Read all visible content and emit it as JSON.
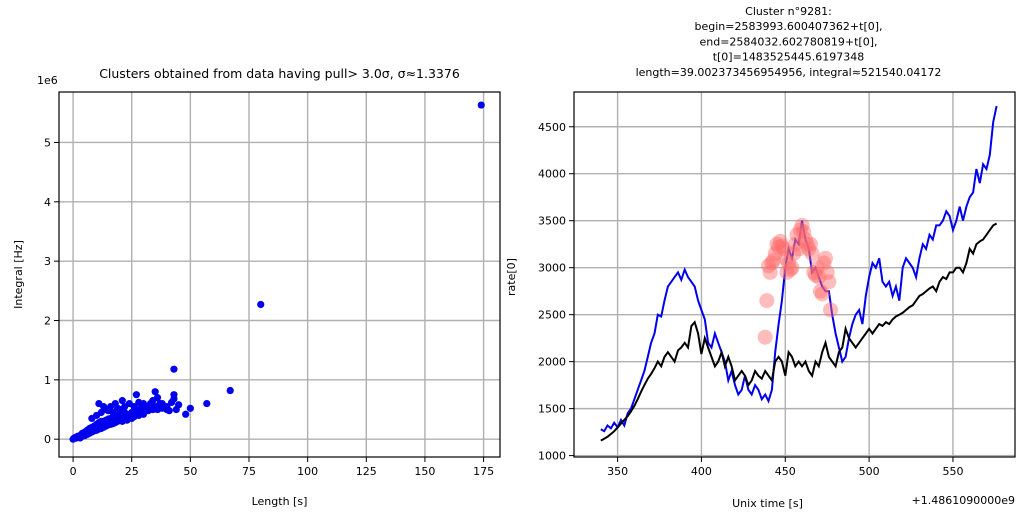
{
  "chart_data": [
    {
      "type": "scatter",
      "title": "Clusters obtained from data having pull> 3.0σ, σ≈1.3376",
      "xlabel": "Length [s]",
      "ylabel": "Integral [Hz]",
      "y_offset_label": "1e6",
      "xlim": [
        -6,
        182
      ],
      "ylim": [
        -0.3,
        5.85
      ],
      "xticks": [
        0,
        25,
        50,
        75,
        100,
        125,
        150,
        175
      ],
      "xtick_labels": [
        "0",
        "25",
        "50",
        "75",
        "100",
        "125",
        "150",
        "175"
      ],
      "yticks": [
        0,
        1,
        2,
        3,
        4,
        5
      ],
      "ytick_labels": [
        "0",
        "1",
        "2",
        "3",
        "4",
        "5"
      ],
      "grid": true,
      "colors": {
        "points": "#0000ee"
      },
      "points": [
        [
          0,
          0
        ],
        [
          0.5,
          0.02
        ],
        [
          1,
          0.03
        ],
        [
          1.5,
          0.02
        ],
        [
          2,
          0.05
        ],
        [
          2.5,
          0.04
        ],
        [
          3,
          0.06
        ],
        [
          3,
          0.02
        ],
        [
          3.5,
          0.08
        ],
        [
          4,
          0.05
        ],
        [
          4,
          0.1
        ],
        [
          4.5,
          0.07
        ],
        [
          5,
          0.12
        ],
        [
          5,
          0.06
        ],
        [
          5.5,
          0.1
        ],
        [
          6,
          0.15
        ],
        [
          6,
          0.08
        ],
        [
          6.5,
          0.12
        ],
        [
          7,
          0.18
        ],
        [
          7,
          0.1
        ],
        [
          7.5,
          0.14
        ],
        [
          8,
          0.2
        ],
        [
          8,
          0.12
        ],
        [
          8.5,
          0.16
        ],
        [
          9,
          0.22
        ],
        [
          9,
          0.14
        ],
        [
          9.5,
          0.18
        ],
        [
          10,
          0.25
        ],
        [
          10,
          0.15
        ],
        [
          10.5,
          0.2
        ],
        [
          11,
          0.28
        ],
        [
          11,
          0.17
        ],
        [
          11.5,
          0.22
        ],
        [
          12,
          0.3
        ],
        [
          12,
          0.18
        ],
        [
          12.5,
          0.24
        ],
        [
          13,
          0.3
        ],
        [
          13,
          0.2
        ],
        [
          13.5,
          0.26
        ],
        [
          14,
          0.32
        ],
        [
          14,
          0.22
        ],
        [
          14.5,
          0.27
        ],
        [
          15,
          0.34
        ],
        [
          15,
          0.24
        ],
        [
          15.5,
          0.29
        ],
        [
          16,
          0.35
        ],
        [
          16,
          0.25
        ],
        [
          16.5,
          0.3
        ],
        [
          17,
          0.36
        ],
        [
          17,
          0.26
        ],
        [
          17.5,
          0.31
        ],
        [
          18,
          0.38
        ],
        [
          18,
          0.28
        ],
        [
          18.5,
          0.33
        ],
        [
          19,
          0.4
        ],
        [
          19,
          0.3
        ],
        [
          19.5,
          0.35
        ],
        [
          20,
          0.42
        ],
        [
          20,
          0.32
        ],
        [
          21,
          0.38
        ],
        [
          21,
          0.3
        ],
        [
          22,
          0.45
        ],
        [
          22,
          0.34
        ],
        [
          23,
          0.4
        ],
        [
          23,
          0.32
        ],
        [
          24,
          0.42
        ],
        [
          25,
          0.45
        ],
        [
          25,
          0.35
        ],
        [
          26,
          0.48
        ],
        [
          26,
          0.38
        ],
        [
          27,
          0.5
        ],
        [
          28,
          0.45
        ],
        [
          28,
          0.4
        ],
        [
          29,
          0.52
        ],
        [
          30,
          0.5
        ],
        [
          30,
          0.42
        ],
        [
          31,
          0.55
        ],
        [
          32,
          0.48
        ],
        [
          33,
          0.6
        ],
        [
          34,
          0.5
        ],
        [
          35,
          0.55
        ],
        [
          36,
          0.5
        ],
        [
          37,
          0.6
        ],
        [
          38,
          0.52
        ],
        [
          40,
          0.55
        ],
        [
          41,
          0.48
        ],
        [
          42,
          0.62
        ],
        [
          44,
          0.5
        ],
        [
          45,
          0.58
        ],
        [
          8,
          0.35
        ],
        [
          10,
          0.4
        ],
        [
          12,
          0.45
        ],
        [
          14,
          0.5
        ],
        [
          16,
          0.55
        ],
        [
          18,
          0.6
        ],
        [
          20,
          0.5
        ],
        [
          21,
          0.65
        ],
        [
          22,
          0.55
        ],
        [
          13,
          0.55
        ],
        [
          11,
          0.6
        ],
        [
          15,
          0.48
        ],
        [
          17,
          0.45
        ],
        [
          19,
          0.52
        ],
        [
          24,
          0.6
        ],
        [
          26,
          0.55
        ],
        [
          28,
          0.62
        ],
        [
          30,
          0.6
        ],
        [
          32,
          0.55
        ],
        [
          34,
          0.65
        ],
        [
          36,
          0.7
        ],
        [
          38,
          0.6
        ],
        [
          40,
          0.5
        ],
        [
          43,
          0.68
        ],
        [
          27,
          0.75
        ],
        [
          35,
          0.8
        ],
        [
          43,
          0.75
        ],
        [
          43,
          1.18
        ],
        [
          48,
          0.42
        ],
        [
          50,
          0.52
        ],
        [
          57,
          0.6
        ],
        [
          67,
          0.82
        ],
        [
          80,
          2.27
        ],
        [
          174,
          5.63
        ]
      ]
    },
    {
      "type": "line",
      "title_lines": [
        "Cluster n°9281:",
        "begin=2583993.600407362+t[0],",
        "end=2584032.602780819+t[0],",
        "t[0]=1483525445.6197348",
        "length=39.002373456954956, integral≈521540.04172"
      ],
      "xlabel": "Unix time [s]",
      "ylabel": "rate[0]",
      "x_offset_label": "+1.4861090000e9",
      "xlim": [
        324,
        587
      ],
      "ylim": [
        985,
        4870
      ],
      "xticks": [
        350,
        400,
        450,
        500,
        550
      ],
      "xtick_labels": [
        "350",
        "400",
        "450",
        "500",
        "550"
      ],
      "yticks": [
        1000,
        1500,
        2000,
        2500,
        3000,
        3500,
        4000,
        4500
      ],
      "ytick_labels": [
        "1000",
        "1500",
        "2000",
        "2500",
        "3000",
        "3500",
        "4000",
        "4500"
      ],
      "grid": true,
      "colors": {
        "blue": "#0000ee",
        "black": "#000000",
        "highlight": "#ff6b6b"
      },
      "series": [
        {
          "color": "#0000ee",
          "x": [
            340,
            342,
            344,
            346,
            348,
            350,
            352,
            354,
            356,
            358,
            360,
            362,
            364,
            366,
            368,
            370,
            372,
            374,
            376,
            378,
            380,
            382,
            384,
            386,
            388,
            390,
            392,
            394,
            396,
            398,
            400,
            402,
            404,
            406,
            408,
            410,
            412,
            414,
            416,
            418,
            420,
            422,
            424,
            426,
            428,
            430,
            432,
            434,
            436,
            438,
            440,
            442,
            444,
            446,
            448,
            450,
            452,
            454,
            456,
            458,
            460,
            462,
            464,
            466,
            468,
            470,
            472,
            474,
            476,
            478,
            480,
            482,
            484,
            486,
            488,
            490,
            492,
            494,
            496,
            498,
            500,
            502,
            504,
            506,
            508,
            510,
            512,
            514,
            516,
            518,
            520,
            522,
            524,
            526,
            528,
            530,
            532,
            534,
            536,
            538,
            540,
            542,
            544,
            546,
            548,
            550,
            552,
            554,
            556,
            558,
            560,
            562,
            564,
            566,
            568,
            570,
            572,
            574,
            576
          ],
          "y": [
            1280,
            1260,
            1320,
            1290,
            1350,
            1300,
            1380,
            1320,
            1450,
            1500,
            1600,
            1700,
            1800,
            1900,
            2050,
            2200,
            2300,
            2500,
            2480,
            2650,
            2800,
            2850,
            2900,
            2950,
            2870,
            2980,
            2900,
            2850,
            2800,
            2650,
            2550,
            2450,
            2200,
            2150,
            2300,
            2200,
            2100,
            2000,
            1800,
            1900,
            1750,
            1650,
            1700,
            1850,
            1700,
            1650,
            1750,
            1700,
            1600,
            1650,
            1580,
            1700,
            2100,
            2400,
            2650,
            3000,
            3200,
            3100,
            3300,
            3250,
            3500,
            3300,
            3200,
            2950,
            3000,
            2900,
            2800,
            2750,
            2750,
            2500,
            2300,
            2150,
            2000,
            2050,
            2250,
            2400,
            2500,
            2550,
            2400,
            2700,
            2900,
            3050,
            3000,
            3100,
            2850,
            2800,
            2850,
            2700,
            2800,
            2650,
            3000,
            3100,
            3050,
            3000,
            2900,
            3100,
            3250,
            3200,
            3350,
            3300,
            3450,
            3450,
            3500,
            3600,
            3550,
            3400,
            3500,
            3650,
            3500,
            3650,
            3750,
            3800,
            4050,
            3900,
            4100,
            4050,
            4200,
            4550,
            4720
          ]
        },
        {
          "color": "#000000",
          "x": [
            340,
            342,
            344,
            346,
            348,
            350,
            352,
            354,
            356,
            358,
            360,
            362,
            364,
            366,
            368,
            370,
            372,
            374,
            376,
            378,
            380,
            382,
            384,
            386,
            388,
            390,
            392,
            394,
            396,
            398,
            400,
            402,
            404,
            406,
            408,
            410,
            412,
            414,
            416,
            418,
            420,
            422,
            424,
            426,
            428,
            430,
            432,
            434,
            436,
            438,
            440,
            442,
            444,
            446,
            448,
            450,
            452,
            454,
            456,
            458,
            460,
            462,
            464,
            466,
            468,
            470,
            472,
            474,
            476,
            478,
            480,
            482,
            484,
            486,
            488,
            490,
            492,
            494,
            496,
            498,
            500,
            502,
            504,
            506,
            508,
            510,
            512,
            514,
            516,
            518,
            520,
            522,
            524,
            526,
            528,
            530,
            532,
            534,
            536,
            538,
            540,
            542,
            544,
            546,
            548,
            550,
            552,
            554,
            556,
            558,
            560,
            562,
            564,
            566,
            568,
            570,
            572,
            574,
            576
          ],
          "y": [
            1160,
            1180,
            1200,
            1230,
            1260,
            1300,
            1340,
            1380,
            1420,
            1470,
            1530,
            1600,
            1680,
            1750,
            1820,
            1870,
            1930,
            2000,
            1950,
            2050,
            2100,
            2050,
            2000,
            2120,
            2150,
            2200,
            2150,
            2380,
            2420,
            2300,
            2080,
            2250,
            2150,
            2050,
            1950,
            2000,
            2100,
            1950,
            2050,
            1950,
            1800,
            1850,
            1900,
            1850,
            1750,
            1800,
            1900,
            1850,
            1820,
            1900,
            1850,
            1800,
            2000,
            2050,
            2000,
            1850,
            2100,
            2050,
            1950,
            2000,
            1950,
            2000,
            1900,
            1850,
            2000,
            1950,
            2100,
            2200,
            2050,
            2000,
            1950,
            2100,
            2150,
            2350,
            2250,
            2200,
            2150,
            2200,
            2250,
            2300,
            2350,
            2300,
            2350,
            2400,
            2380,
            2420,
            2400,
            2450,
            2480,
            2500,
            2520,
            2550,
            2580,
            2600,
            2650,
            2700,
            2720,
            2750,
            2780,
            2800,
            2750,
            2850,
            2900,
            2880,
            2950,
            2950,
            3000,
            3000,
            2950,
            3050,
            3200,
            3150,
            3250,
            3280,
            3300,
            3350,
            3400,
            3450,
            3470
          ]
        },
        {
          "name": "",
          "type": "scatter",
          "color": "#ff6b6b",
          "x": [
            438,
            439,
            440,
            441,
            442,
            443,
            444,
            445,
            446,
            447,
            448,
            449,
            450,
            451,
            452,
            453,
            454,
            455,
            456,
            457,
            458,
            459,
            460,
            461,
            462,
            463,
            464,
            465,
            466,
            467,
            468,
            469,
            470,
            471,
            472,
            473,
            474,
            475,
            476,
            477
          ],
          "y": [
            2260,
            2650,
            3020,
            2950,
            3050,
            3080,
            3150,
            3250,
            3220,
            3280,
            3230,
            3200,
            3100,
            2950,
            3050,
            2980,
            3000,
            3150,
            3250,
            3350,
            3200,
            3400,
            3450,
            3380,
            3300,
            3250,
            3200,
            3250,
            3150,
            2950,
            2920,
            3000,
            2900,
            2750,
            2720,
            3050,
            3100,
            2950,
            2850,
            2550
          ]
        }
      ]
    }
  ]
}
